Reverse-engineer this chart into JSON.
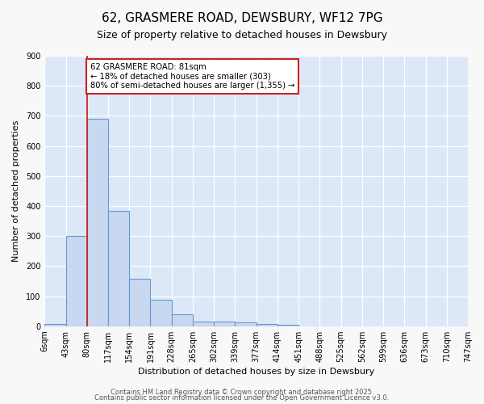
{
  "title": "62, GRASMERE ROAD, DEWSBURY, WF12 7PG",
  "subtitle": "Size of property relative to detached houses in Dewsbury",
  "xlabel": "Distribution of detached houses by size in Dewsbury",
  "ylabel": "Number of detached properties",
  "bar_values": [
    8,
    300,
    690,
    385,
    158,
    88,
    40,
    15,
    15,
    12,
    8,
    4,
    0,
    0,
    0,
    0,
    0,
    0,
    0,
    0
  ],
  "bin_labels": [
    "6sqm",
    "43sqm",
    "80sqm",
    "117sqm",
    "154sqm",
    "191sqm",
    "228sqm",
    "265sqm",
    "302sqm",
    "339sqm",
    "377sqm",
    "414sqm",
    "451sqm",
    "488sqm",
    "525sqm",
    "562sqm",
    "599sqm",
    "636sqm",
    "673sqm",
    "710sqm",
    "747sqm"
  ],
  "bar_color": "#c8d8f0",
  "bar_edge_color": "#6699cc",
  "property_line_x": 2.0,
  "property_line_color": "#cc2222",
  "annotation_text": "62 GRASMERE ROAD: 81sqm\n← 18% of detached houses are smaller (303)\n80% of semi-detached houses are larger (1,355) →",
  "annotation_box_facecolor": "#ffffff",
  "annotation_box_edgecolor": "#cc2222",
  "ylim": [
    0,
    900
  ],
  "yticks": [
    0,
    100,
    200,
    300,
    400,
    500,
    600,
    700,
    800,
    900
  ],
  "background_color": "#dce8f8",
  "fig_background_color": "#f8f8f8",
  "footer1": "Contains HM Land Registry data © Crown copyright and database right 2025.",
  "footer2": "Contains public sector information licensed under the Open Government Licence v3.0.",
  "title_fontsize": 11,
  "subtitle_fontsize": 9,
  "xlabel_fontsize": 8,
  "ylabel_fontsize": 8,
  "tick_fontsize": 7,
  "footer_fontsize": 6
}
